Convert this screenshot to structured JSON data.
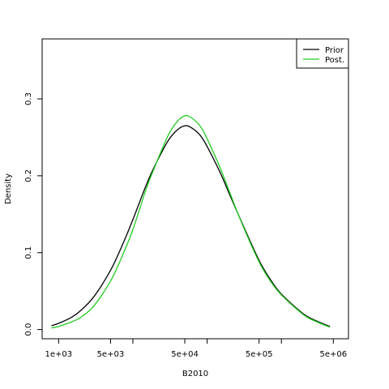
{
  "chart_data": {
    "type": "line",
    "title": "",
    "xlabel": "B2010",
    "ylabel": "Density",
    "x_scale": "log",
    "xlim": [
      600,
      8000000
    ],
    "ylim": [
      -0.012,
      0.378
    ],
    "grid": false,
    "legend_position": "top-right",
    "x_ticks": [
      1000,
      5000,
      50000,
      500000,
      5000000
    ],
    "x_tick_labels": [
      "1e+03",
      "5e+03",
      "5e+04",
      "5e+05",
      "5e+06"
    ],
    "x_minor_ticks": [
      10000,
      100000,
      1000000
    ],
    "y_ticks": [
      0.0,
      0.1,
      0.2,
      0.3
    ],
    "y_tick_labels": [
      "0.0",
      "0.1",
      "0.2",
      "0.3"
    ],
    "series": [
      {
        "name": "Prior",
        "color": "#000000",
        "x": [
          800,
          1000,
          1500,
          2000,
          3000,
          5000,
          7000,
          10000,
          15000,
          20000,
          30000,
          40000,
          50000,
          60000,
          80000,
          100000,
          150000,
          200000,
          300000,
          500000,
          700000,
          1000000,
          2000000,
          3000000,
          4500000
        ],
        "y": [
          0.005,
          0.008,
          0.016,
          0.025,
          0.043,
          0.077,
          0.107,
          0.143,
          0.187,
          0.214,
          0.246,
          0.26,
          0.265,
          0.263,
          0.253,
          0.238,
          0.204,
          0.176,
          0.137,
          0.09,
          0.066,
          0.046,
          0.02,
          0.011,
          0.004
        ]
      },
      {
        "name": "Post.",
        "color": "#22cc22",
        "x": [
          800,
          1000,
          1500,
          2000,
          3000,
          5000,
          7000,
          10000,
          15000,
          20000,
          30000,
          40000,
          50000,
          60000,
          80000,
          100000,
          150000,
          200000,
          300000,
          500000,
          700000,
          1000000,
          2000000,
          3000000,
          4500000
        ],
        "y": [
          0.002,
          0.004,
          0.01,
          0.016,
          0.031,
          0.063,
          0.093,
          0.13,
          0.182,
          0.213,
          0.253,
          0.271,
          0.278,
          0.276,
          0.265,
          0.248,
          0.21,
          0.179,
          0.136,
          0.088,
          0.064,
          0.045,
          0.019,
          0.01,
          0.003
        ]
      }
    ]
  }
}
